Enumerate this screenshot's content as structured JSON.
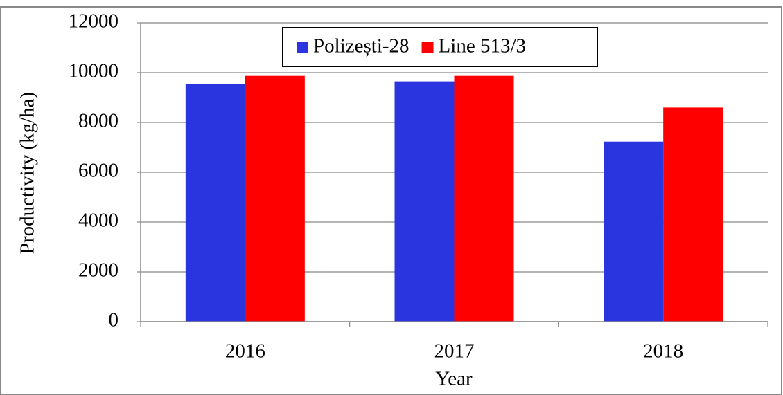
{
  "chart_data": {
    "type": "bar",
    "y_label": "Productivity (kg/ha)",
    "x_label": "Year",
    "categories": [
      "2016",
      "2017",
      "2018"
    ],
    "series": [
      {
        "name": "Polizești-28",
        "color": "#2a35e0",
        "values": [
          9550,
          9650,
          7230
        ]
      },
      {
        "name": "Line 513/3",
        "color": "#ff0000",
        "values": [
          9870,
          9870,
          8600
        ]
      }
    ],
    "ylim": [
      0,
      12000
    ],
    "yticks": [
      0,
      2000,
      4000,
      6000,
      8000,
      10000,
      12000
    ],
    "grid": true,
    "legend": "top"
  }
}
